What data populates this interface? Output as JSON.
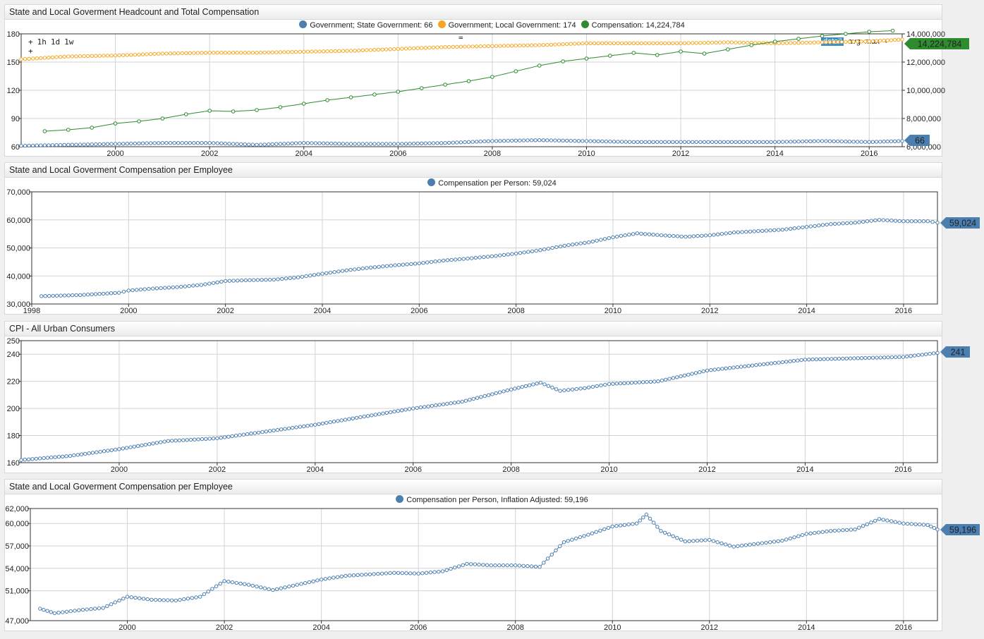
{
  "colors": {
    "blue": "#4a7fb0",
    "orange": "#f5a623",
    "green": "#2e8b2e",
    "grid": "#d3d3d3",
    "frame": "#333333"
  },
  "panels": [
    {
      "title": "State and Local Goverment Headcount and Total Compensation",
      "legend": [
        {
          "label": "Government; State Government: 66",
          "color": "#4a7fb0"
        },
        {
          "label": "Government; Local Government: 174",
          "color": "#f5a623"
        },
        {
          "label": "Compensation: 14,224,784",
          "color": "#2e8b2e"
        }
      ],
      "toolbar": {
        "items": [
          "+",
          "1h",
          "1d",
          "1w"
        ],
        "extra": "+",
        "center": "="
      },
      "right_tools": {
        "detail": "detail",
        "avg": "avg",
        "max": "max",
        "plus": "+"
      },
      "badges": [
        {
          "text": "14,224,784",
          "color": "#2e8b2e"
        },
        {
          "text": "66",
          "color": "#4a7fb0"
        }
      ]
    },
    {
      "title": "State and Local Goverment Compensation per Employee",
      "legend": [
        {
          "label": "Compensation per Person: 59,024",
          "color": "#4a7fb0"
        }
      ],
      "badges": [
        {
          "text": "59,024",
          "color": "#4a7fb0"
        }
      ]
    },
    {
      "title": "CPI - All Urban Consumers",
      "legend": [],
      "badges": [
        {
          "text": "241",
          "color": "#4a7fb0"
        }
      ]
    },
    {
      "title": "State and Local Goverment Compensation per Employee",
      "legend": [
        {
          "label": "Compensation per Person, Inflation Adjusted: 59,196",
          "color": "#4a7fb0"
        }
      ],
      "badges": [
        {
          "text": "59,196",
          "color": "#4a7fb0"
        }
      ]
    }
  ],
  "chart_data": [
    {
      "type": "line",
      "title": "State and Local Goverment Headcount and Total Compensation",
      "xlim": [
        1998.0,
        2016.7
      ],
      "x_ticks": [
        "2000",
        "2002",
        "2004",
        "2006",
        "2008",
        "2010",
        "2012",
        "2014",
        "2016"
      ],
      "y_left": {
        "lim": [
          60,
          180
        ],
        "ticks": [
          "60",
          "90",
          "120",
          "150",
          "180"
        ]
      },
      "y_right": {
        "lim": [
          6000000,
          14000000
        ],
        "ticks": [
          "6,000,000",
          "8,000,000",
          "10,000,000",
          "12,000,000",
          "14,000,000"
        ]
      },
      "series": [
        {
          "name": "Government; State Government",
          "axis": "left",
          "color": "#4a7fb0",
          "x": [
            1998.0,
            1999,
            2000,
            2001,
            2002,
            2003,
            2004,
            2005,
            2006,
            2007,
            2008,
            2009,
            2010,
            2011,
            2012,
            2013,
            2014,
            2015,
            2016,
            2016.7
          ],
          "y": [
            61,
            62,
            63,
            64,
            64,
            62,
            64,
            63,
            63,
            64,
            66,
            67,
            66,
            65,
            65,
            65,
            65,
            66,
            65,
            66
          ]
        },
        {
          "name": "Government; Local Government",
          "axis": "left",
          "color": "#f5a623",
          "x": [
            1998.0,
            1999,
            2000,
            2001,
            2002,
            2003,
            2004,
            2005,
            2006,
            2007,
            2008,
            2009,
            2010,
            2011,
            2012,
            2013,
            2014,
            2015,
            2016,
            2016.7
          ],
          "y": [
            153,
            156,
            157,
            159,
            160,
            160,
            161,
            162,
            164,
            166,
            167,
            168,
            170,
            170,
            170,
            171,
            170,
            171,
            172,
            174
          ]
        },
        {
          "name": "Compensation",
          "axis": "right",
          "color": "#2e8b2e",
          "x": [
            1998.5,
            1999,
            1999.5,
            2000,
            2000.5,
            2001,
            2001.5,
            2002,
            2002.5,
            2003,
            2003.5,
            2004,
            2004.5,
            2005,
            2005.5,
            2006,
            2006.5,
            2007,
            2007.5,
            2008,
            2008.5,
            2009,
            2009.5,
            2010,
            2010.5,
            2011,
            2011.5,
            2012,
            2012.5,
            2013,
            2013.5,
            2014,
            2014.5,
            2015,
            2015.5,
            2016,
            2016.5
          ],
          "y": [
            7100000,
            7200000,
            7350000,
            7650000,
            7800000,
            8000000,
            8300000,
            8550000,
            8500000,
            8600000,
            8800000,
            9050000,
            9300000,
            9500000,
            9700000,
            9900000,
            10150000,
            10400000,
            10650000,
            10950000,
            11350000,
            11750000,
            12050000,
            12250000,
            12450000,
            12650000,
            12500000,
            12750000,
            12600000,
            12900000,
            13200000,
            13450000,
            13650000,
            13850000,
            14000000,
            14150000,
            14224784
          ]
        }
      ]
    },
    {
      "type": "line",
      "title": "State and Local Goverment Compensation per Employee",
      "xlim": [
        1998.0,
        2016.7
      ],
      "x_ticks": [
        "1998",
        "2000",
        "2002",
        "2004",
        "2006",
        "2008",
        "2010",
        "2012",
        "2014",
        "2016"
      ],
      "ylim": [
        30000,
        70000
      ],
      "y_ticks": [
        "30,000",
        "40,000",
        "50,000",
        "60,000",
        "70,000"
      ],
      "series": [
        {
          "name": "Compensation per Person",
          "color": "#4a7fb0",
          "x": [
            1998.2,
            1999,
            1999.8,
            2000,
            2000.5,
            2001,
            2001.5,
            2002,
            2002.5,
            2003,
            2003.5,
            2004,
            2004.5,
            2005,
            2005.5,
            2006,
            2006.5,
            2007,
            2007.5,
            2008,
            2008.5,
            2009,
            2009.5,
            2010,
            2010.5,
            2011,
            2011.5,
            2012,
            2012.5,
            2013,
            2013.5,
            2014,
            2014.5,
            2015,
            2015.5,
            2016,
            2016.5,
            2016.7
          ],
          "y": [
            32800,
            33200,
            34000,
            34800,
            35500,
            36000,
            36800,
            38200,
            38500,
            38700,
            39500,
            40800,
            42000,
            43000,
            43800,
            44500,
            45500,
            46200,
            47000,
            48000,
            49200,
            50800,
            52000,
            53800,
            55200,
            54500,
            54000,
            54500,
            55500,
            56000,
            56500,
            57500,
            58500,
            59000,
            60000,
            59500,
            59500,
            59024
          ]
        }
      ]
    },
    {
      "type": "line",
      "title": "CPI - All Urban Consumers",
      "xlim": [
        1998.0,
        2016.7
      ],
      "x_ticks": [
        "2000",
        "2002",
        "2004",
        "2006",
        "2008",
        "2010",
        "2012",
        "2014",
        "2016"
      ],
      "ylim": [
        160,
        250
      ],
      "y_ticks": [
        "160",
        "180",
        "200",
        "220",
        "240",
        "250"
      ],
      "series": [
        {
          "name": "CPI",
          "color": "#4a7fb0",
          "x": [
            1998.0,
            1999,
            2000,
            2001,
            2002,
            2003,
            2004,
            2005,
            2006,
            2007,
            2008,
            2008.6,
            2009,
            2009.5,
            2010,
            2011,
            2012,
            2013,
            2014,
            2015,
            2016,
            2016.7
          ],
          "y": [
            162,
            165,
            170,
            176,
            178,
            183,
            188,
            194,
            200,
            205,
            214,
            219,
            213,
            215,
            218,
            220,
            228,
            232,
            236,
            237,
            238,
            241
          ]
        }
      ]
    },
    {
      "type": "line",
      "title": "State and Local Goverment Compensation per Employee",
      "xlim": [
        1998.0,
        2016.7
      ],
      "x_ticks": [
        "2000",
        "2002",
        "2004",
        "2006",
        "2008",
        "2010",
        "2012",
        "2014",
        "2016"
      ],
      "ylim": [
        47000,
        62000
      ],
      "y_ticks": [
        "47,000",
        "51,000",
        "54,000",
        "57,000",
        "60,000",
        "62,000"
      ],
      "series": [
        {
          "name": "Compensation per Person, Inflation Adjusted",
          "color": "#4a7fb0",
          "x": [
            1998.2,
            1998.5,
            1999,
            1999.5,
            2000,
            2000.5,
            2001,
            2001.5,
            2002,
            2002.5,
            2003,
            2003.5,
            2004,
            2004.5,
            2005,
            2005.5,
            2006,
            2006.5,
            2007,
            2007.5,
            2008,
            2008.5,
            2009,
            2009.5,
            2010,
            2010.5,
            2010.7,
            2011,
            2011.5,
            2012,
            2012.5,
            2013,
            2013.5,
            2014,
            2014.5,
            2015,
            2015.5,
            2016,
            2016.5,
            2016.7
          ],
          "y": [
            48600,
            48000,
            48400,
            48700,
            50200,
            49800,
            49700,
            50200,
            52300,
            51800,
            51100,
            51800,
            52500,
            53000,
            53200,
            53400,
            53300,
            53600,
            54600,
            54400,
            54400,
            54200,
            57500,
            58500,
            59600,
            60000,
            61200,
            59000,
            57600,
            57800,
            56900,
            57300,
            57700,
            58600,
            59000,
            59200,
            60600,
            60000,
            59800,
            59196
          ]
        }
      ]
    }
  ]
}
